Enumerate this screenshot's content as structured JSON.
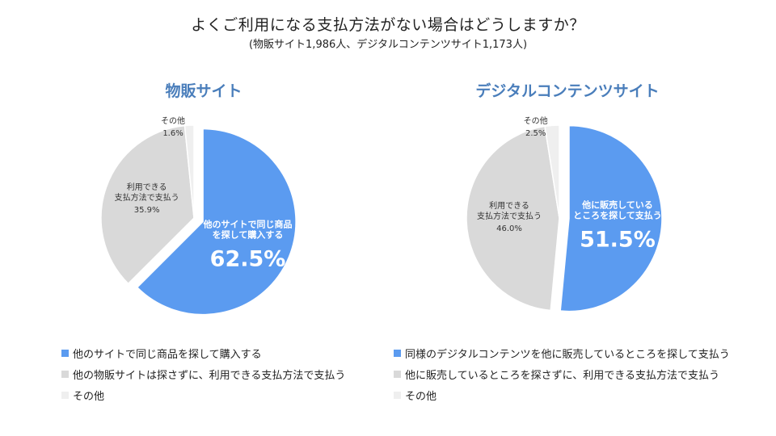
{
  "title": "よくご利用になる支払方法がない場合はどうしますか？",
  "subtitle": "(物販サイト1,986人、デジタルコンテンツサイト1,173人)",
  "colors": {
    "blue": "#5b9bf0",
    "gray": "#d9d9d9",
    "light": "#efefef",
    "heading": "#4a7ebb"
  },
  "chart_data": [
    {
      "type": "pie",
      "title": "物販サイト",
      "categories": [
        "他のサイトで同じ商品を探して購入する",
        "他の物販サイトは探さずに、利用できる支払方法で支払う",
        "その他"
      ],
      "values": [
        62.5,
        35.9,
        1.6
      ],
      "slice_labels": [
        {
          "lines": [
            "他のサイトで同じ商品",
            "を探して購入する"
          ],
          "value": "62.5%"
        },
        {
          "lines": [
            "利用できる",
            "支払方法で支払う"
          ],
          "value": "35.9%"
        },
        {
          "lines": [
            "その他"
          ],
          "value": "1.6%"
        }
      ],
      "legend": "bottom"
    },
    {
      "type": "pie",
      "title": "デジタルコンテンツサイト",
      "categories": [
        "同様のデジタルコンテンツを他に販売しているところを探して支払う",
        "他に販売しているところを探さずに、利用できる支払方法で支払う",
        "その他"
      ],
      "values": [
        51.5,
        46.0,
        2.5
      ],
      "slice_labels": [
        {
          "lines": [
            "他に販売している",
            "ところを探して支払う"
          ],
          "value": "51.5%"
        },
        {
          "lines": [
            "利用できる",
            "支払方法で支払う"
          ],
          "value": "46.0%"
        },
        {
          "lines": [
            "その他"
          ],
          "value": "2.5%"
        }
      ],
      "legend": "bottom"
    }
  ]
}
